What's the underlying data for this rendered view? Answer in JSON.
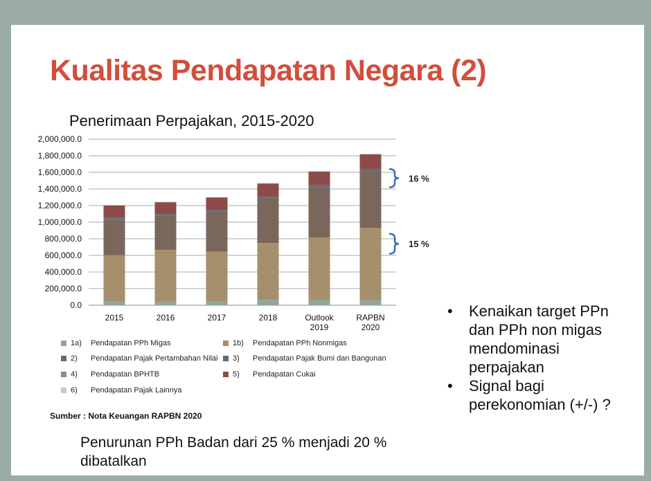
{
  "slide": {
    "title": "Kualitas Pendapatan Negara (2)",
    "source": "Sumber : Nota Keuangan RAPBN 2020",
    "note": "Penurunan PPh Badan dari 25 % menjadi 20 % dibatalkan",
    "bullets": [
      "Kenaikan target PPn dan PPh non migas mendominasi perpajakan",
      "Signal bagi perekonomian (+/-) ?"
    ],
    "bullet_glyph": "•"
  },
  "chart_data": {
    "type": "bar",
    "stacked": true,
    "title": "Penerimaan Perpajakan, 2015-2020",
    "categories": [
      "2015",
      "2016",
      "2017",
      "2018",
      "Outlook 2019",
      "RAPBN 2020"
    ],
    "y_ticks": [
      "0.0",
      "200,000.0",
      "400,000.0",
      "600,000.0",
      "800,000.0",
      "1,000,000.0",
      "1,200,000.0",
      "1,400,000.0",
      "1,600,000.0",
      "1,800,000.0",
      "2,000,000.0"
    ],
    "ylim": [
      0,
      2000000
    ],
    "grid": true,
    "legend_position": "bottom",
    "series": [
      {
        "code": "1a)",
        "name": "Pendapatan PPh Migas",
        "color": "#8fa79a",
        "values": [
          50000,
          36000,
          50000,
          64000,
          59000,
          57000
        ]
      },
      {
        "code": "1b)",
        "name": "Pendapatan PPh Nonmigas",
        "color": "#a58f6c",
        "values": [
          553000,
          630000,
          596000,
          685000,
          757000,
          873000
        ]
      },
      {
        "code": "2)",
        "name": "Pendapatan Pajak Pertambahan Nilai",
        "color": "#7a675c",
        "values": [
          424000,
          412000,
          481000,
          538000,
          608000,
          686000
        ]
      },
      {
        "code": "3)",
        "name": "Pendapatan Pajak Bumi dan Bangunan",
        "color": "#5e6e7a",
        "values": [
          29000,
          19000,
          17000,
          19000,
          19000,
          20000
        ]
      },
      {
        "code": "4)",
        "name": "Pendapatan BPHTB",
        "color": "#8a9088",
        "values": [
          0,
          0,
          0,
          0,
          0,
          0
        ]
      },
      {
        "code": "5)",
        "name": "Pendapatan Cukai",
        "color": "#8c4a48",
        "values": [
          145000,
          143000,
          153000,
          159000,
          165000,
          180000
        ]
      },
      {
        "code": "6)",
        "name": "Pendapatan Pajak Lainnya",
        "color": "#c8c8c8",
        "values": [
          6000,
          6000,
          6000,
          7000,
          7000,
          8000
        ]
      }
    ],
    "annotations": [
      {
        "text": "16 %",
        "from": 1420000,
        "to": 1640000
      },
      {
        "text": "15 %",
        "from": 620000,
        "to": 860000
      }
    ]
  }
}
